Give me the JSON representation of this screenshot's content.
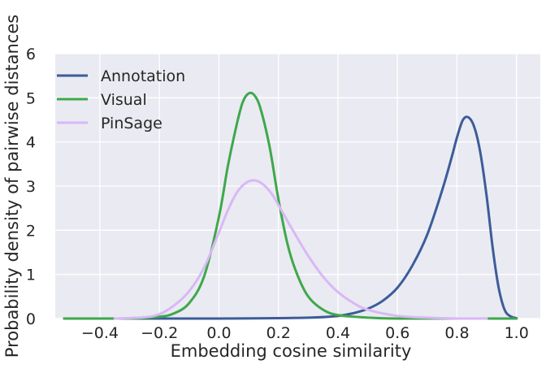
{
  "chart_data": {
    "type": "line",
    "title": "",
    "xlabel": "Embedding cosine similarity",
    "ylabel": "Probability density of pairwise distances",
    "xlim": [
      -0.55,
      1.08
    ],
    "ylim": [
      0,
      6
    ],
    "x_ticks": [
      -0.4,
      -0.2,
      0.0,
      0.2,
      0.4,
      0.6,
      0.8,
      1.0
    ],
    "x_tick_labels": [
      "−0.4",
      "−0.2",
      "0.0",
      "0.2",
      "0.4",
      "0.6",
      "0.8",
      "1.0"
    ],
    "y_ticks": [
      0,
      1,
      2,
      3,
      4,
      5,
      6
    ],
    "y_tick_labels": [
      "0",
      "1",
      "2",
      "3",
      "4",
      "5",
      "6"
    ],
    "grid": true,
    "legend_position": "top-left",
    "series": [
      {
        "name": "Annotation",
        "color": "#3c5c9a",
        "x": [
          -0.52,
          0.0,
          0.3,
          0.4,
          0.45,
          0.5,
          0.55,
          0.6,
          0.65,
          0.7,
          0.75,
          0.78,
          0.8,
          0.82,
          0.84,
          0.86,
          0.88,
          0.9,
          0.92,
          0.94,
          0.96,
          0.98,
          1.0
        ],
        "y": [
          0.0,
          0.0,
          0.02,
          0.06,
          0.12,
          0.22,
          0.4,
          0.7,
          1.2,
          1.9,
          2.9,
          3.6,
          4.1,
          4.5,
          4.55,
          4.3,
          3.7,
          2.75,
          1.6,
          0.7,
          0.2,
          0.05,
          0.01
        ]
      },
      {
        "name": "Visual",
        "color": "#3ea84a",
        "x": [
          -0.52,
          -0.3,
          -0.2,
          -0.15,
          -0.1,
          -0.05,
          0.0,
          0.03,
          0.06,
          0.08,
          0.1,
          0.12,
          0.14,
          0.17,
          0.2,
          0.23,
          0.26,
          0.3,
          0.35,
          0.4,
          0.5,
          0.6,
          0.8,
          1.0
        ],
        "y": [
          0.0,
          0.0,
          0.04,
          0.12,
          0.35,
          0.95,
          2.3,
          3.45,
          4.4,
          4.9,
          5.1,
          5.05,
          4.75,
          3.9,
          2.7,
          1.7,
          1.05,
          0.5,
          0.2,
          0.08,
          0.02,
          0.0,
          0.0,
          0.0
        ]
      },
      {
        "name": "PinSage",
        "color": "#d9b8f5",
        "x": [
          -0.35,
          -0.25,
          -0.2,
          -0.15,
          -0.1,
          -0.05,
          0.0,
          0.03,
          0.06,
          0.09,
          0.12,
          0.15,
          0.18,
          0.21,
          0.25,
          0.3,
          0.35,
          0.4,
          0.45,
          0.5,
          0.6,
          0.7,
          0.8,
          0.9
        ],
        "y": [
          0.0,
          0.03,
          0.1,
          0.3,
          0.62,
          1.15,
          1.95,
          2.45,
          2.85,
          3.07,
          3.13,
          3.03,
          2.8,
          2.45,
          1.98,
          1.42,
          0.95,
          0.6,
          0.36,
          0.2,
          0.06,
          0.02,
          0.0,
          0.0
        ]
      }
    ]
  }
}
